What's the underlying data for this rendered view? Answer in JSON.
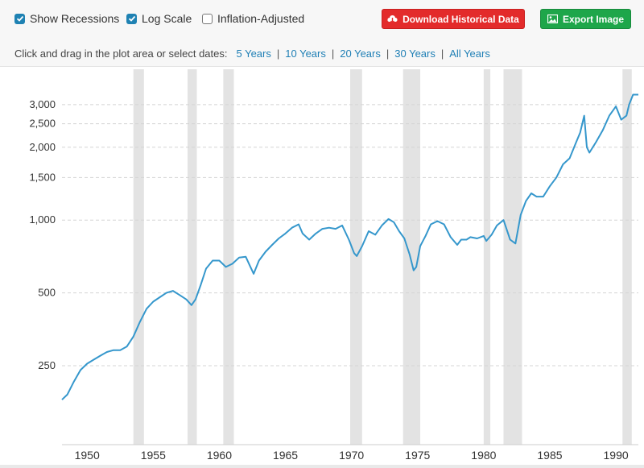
{
  "controls": {
    "show_recessions": {
      "label": "Show Recessions",
      "checked": true
    },
    "log_scale": {
      "label": "Log Scale",
      "checked": true
    },
    "inflation_adjusted": {
      "label": "Inflation-Adjusted",
      "checked": false
    },
    "download_button": {
      "label": "Download Historical Data",
      "icon": "cloud-download-icon",
      "color": "#e32b2b"
    },
    "export_button": {
      "label": "Export Image",
      "icon": "image-icon",
      "color": "#1ea64a"
    },
    "range_prompt": "Click and drag in the plot area or select dates:",
    "ranges": [
      "5 Years",
      "10 Years",
      "20 Years",
      "30 Years",
      "All Years"
    ],
    "link_color": "#1f7fb5"
  },
  "chart_data": {
    "type": "line",
    "y_scale": "log",
    "xlim": [
      1948.1,
      1991.7
    ],
    "ylim": [
      118,
      4200
    ],
    "grid": true,
    "y_ticks": [
      250,
      500,
      1000,
      1500,
      2000,
      2500,
      3000
    ],
    "y_tick_labels": [
      "250",
      "500",
      "1,000",
      "1,500",
      "2,000",
      "2,500",
      "3,000"
    ],
    "x_ticks": [
      1950,
      1955,
      1960,
      1965,
      1970,
      1975,
      1980,
      1985,
      1990
    ],
    "x_tick_labels": [
      "1950",
      "1955",
      "1960",
      "1965",
      "1970",
      "1975",
      "1980",
      "1985",
      "1990"
    ],
    "line_color": "#3597cc",
    "recession_color": "#e3e3e3",
    "recessions": [
      [
        1953.5,
        1954.3
      ],
      [
        1957.6,
        1958.3
      ],
      [
        1960.3,
        1961.1
      ],
      [
        1969.9,
        1970.8
      ],
      [
        1973.9,
        1975.2
      ],
      [
        1980.0,
        1980.5
      ],
      [
        1981.5,
        1982.9
      ],
      [
        1990.5,
        1991.2
      ]
    ],
    "series": [
      {
        "x": [
          1948.1,
          1948.5,
          1949.0,
          1949.5,
          1950.0,
          1950.5,
          1951.0,
          1951.5,
          1952.0,
          1952.5,
          1953.0,
          1953.5,
          1954.0,
          1954.5,
          1955.0,
          1955.5,
          1956.0,
          1956.5,
          1957.0,
          1957.5,
          1957.9,
          1958.2,
          1958.6,
          1959.0,
          1959.5,
          1960.0,
          1960.5,
          1961.0,
          1961.5,
          1962.0,
          1962.3,
          1962.6,
          1963.0,
          1963.5,
          1964.0,
          1964.5,
          1965.0,
          1965.5,
          1966.0,
          1966.3,
          1966.8,
          1967.3,
          1967.8,
          1968.3,
          1968.8,
          1969.3,
          1969.8,
          1970.2,
          1970.4,
          1970.8,
          1971.3,
          1971.8,
          1972.3,
          1972.8,
          1973.2,
          1973.6,
          1974.0,
          1974.4,
          1974.7,
          1974.9,
          1975.2,
          1975.6,
          1976.0,
          1976.5,
          1977.0,
          1977.5,
          1978.0,
          1978.3,
          1978.7,
          1979.0,
          1979.5,
          1980.0,
          1980.2,
          1980.6,
          1981.0,
          1981.5,
          1982.0,
          1982.4,
          1982.8,
          1983.2,
          1983.6,
          1984.0,
          1984.5,
          1985.0,
          1985.5,
          1986.0,
          1986.5,
          1987.0,
          1987.3,
          1987.6,
          1987.8,
          1988.0,
          1988.5,
          1989.0,
          1989.5,
          1990.0,
          1990.4,
          1990.8,
          1991.0,
          1991.3,
          1991.7
        ],
        "values": [
          181,
          190,
          215,
          240,
          255,
          265,
          275,
          285,
          290,
          290,
          300,
          330,
          380,
          430,
          460,
          480,
          500,
          510,
          490,
          470,
          445,
          470,
          540,
          630,
          680,
          680,
          640,
          660,
          700,
          705,
          650,
          600,
          680,
          740,
          790,
          840,
          880,
          930,
          960,
          880,
          830,
          880,
          920,
          930,
          920,
          950,
          830,
          730,
          710,
          780,
          900,
          870,
          950,
          1010,
          980,
          900,
          840,
          720,
          620,
          640,
          780,
          860,
          960,
          990,
          960,
          850,
          790,
          830,
          830,
          850,
          840,
          860,
          820,
          870,
          950,
          1000,
          830,
          800,
          1050,
          1200,
          1290,
          1250,
          1250,
          1380,
          1500,
          1700,
          1800,
          2100,
          2300,
          2700,
          2000,
          1900,
          2100,
          2350,
          2700,
          2950,
          2600,
          2700,
          3000,
          3300,
          3300
        ]
      }
    ]
  }
}
